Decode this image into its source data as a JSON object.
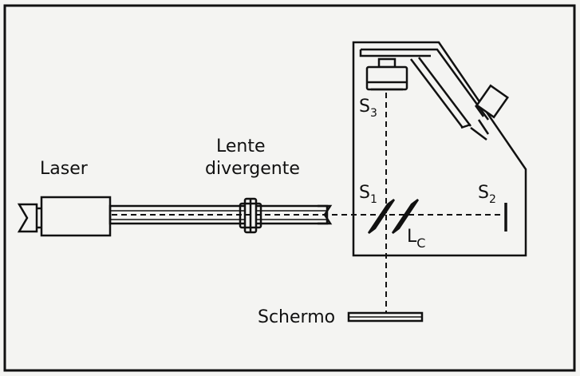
{
  "labels": {
    "laser": "Laser",
    "lens_line1": "Lente",
    "lens_line2": "divergente",
    "s1": "S",
    "s1_sub": "1",
    "s2": "S",
    "s2_sub": "2",
    "s3": "S",
    "s3_sub": "3",
    "lc": "L",
    "lc_sub": "C",
    "screen": "Schermo"
  },
  "colors": {
    "ink": "#111111",
    "paper": "#f4f4f2",
    "rail_fill": "#d9d9d9"
  }
}
